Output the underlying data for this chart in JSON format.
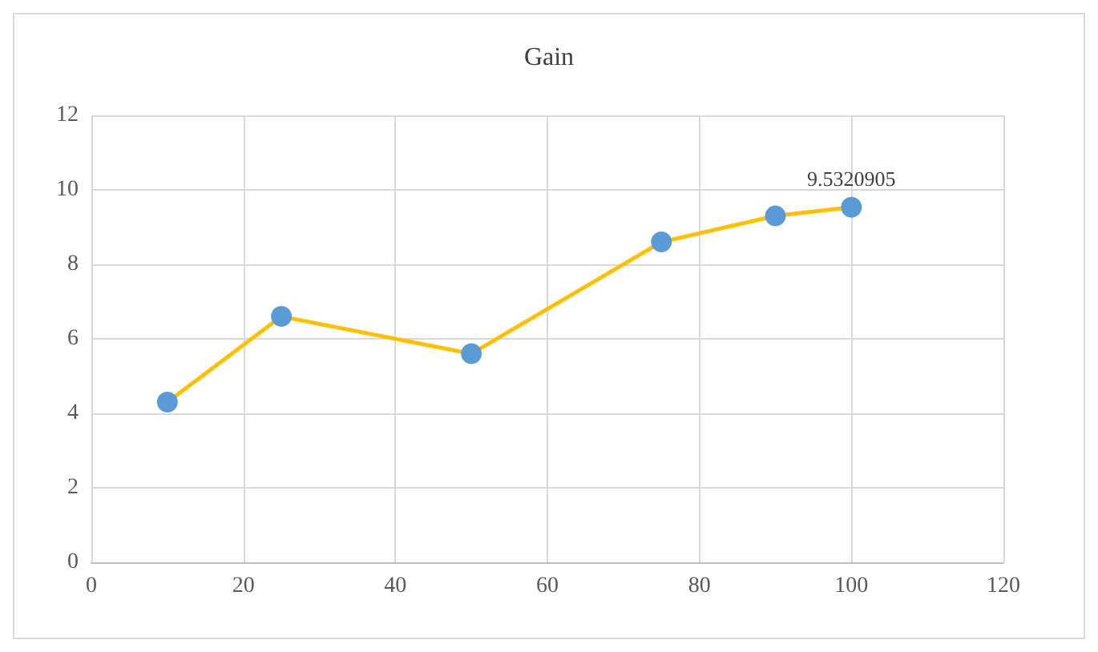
{
  "chart_data": {
    "type": "line",
    "title": "Gain",
    "x": [
      10,
      25,
      50,
      75,
      90,
      100
    ],
    "series": [
      {
        "color": "#ffc000",
        "colors": [
          "#5b9bd5",
          "#5b9bd5",
          "#5b9bd5",
          "#5b9bd5",
          "#5b9bd5",
          "#5b9bd5"
        ],
        "values": [
          4.3,
          6.6,
          5.6,
          8.6,
          9.3,
          9.5320905
        ],
        "value_labels": [
          null,
          null,
          null,
          null,
          null,
          "9.5320905"
        ]
      }
    ],
    "xlim": [
      0,
      120
    ],
    "xticks": [
      0,
      20,
      40,
      60,
      80,
      100,
      120
    ],
    "ylim": [
      0,
      12
    ],
    "yticks": [
      0,
      2,
      4,
      6,
      8,
      10,
      12
    ],
    "grid": true,
    "marker": "circle",
    "line_style": "solid"
  }
}
